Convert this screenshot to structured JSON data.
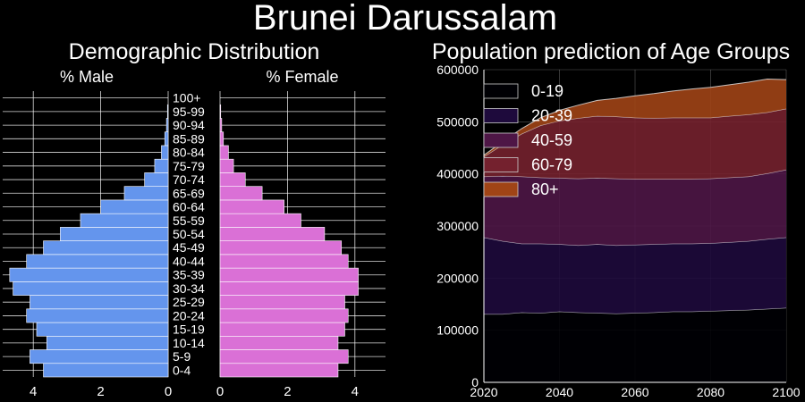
{
  "figure": {
    "title": "Brunei Darussalam"
  },
  "chart_data": [
    {
      "type": "bar",
      "orientation": "horizontal",
      "title": "Demographic Distribution",
      "subtitle_left": "% Male",
      "subtitle_right": "% Female",
      "categories": [
        "0-4",
        "5-9",
        "10-14",
        "15-19",
        "20-24",
        "25-29",
        "30-34",
        "35-39",
        "40-44",
        "45-49",
        "50-54",
        "55-59",
        "60-64",
        "65-69",
        "70-74",
        "75-79",
        "80-84",
        "85-89",
        "90-94",
        "95-99",
        "100+"
      ],
      "series": [
        {
          "name": "% Male",
          "color": "#6495ed",
          "values": [
            3.7,
            4.1,
            3.6,
            3.9,
            4.2,
            4.1,
            4.6,
            4.7,
            4.2,
            3.7,
            3.2,
            2.6,
            2.0,
            1.3,
            0.7,
            0.4,
            0.2,
            0.1,
            0.05,
            0.02,
            0.0
          ]
        },
        {
          "name": "% Female",
          "color": "#da70d6",
          "values": [
            3.5,
            3.8,
            3.5,
            3.7,
            3.8,
            3.7,
            4.1,
            4.1,
            3.8,
            3.6,
            3.1,
            2.4,
            1.9,
            1.25,
            0.75,
            0.4,
            0.25,
            0.1,
            0.05,
            0.02,
            0.0
          ]
        }
      ],
      "xlim": [
        0,
        5
      ],
      "xticks": [
        0,
        2,
        4
      ]
    },
    {
      "type": "area",
      "stacked": true,
      "title": "Population prediction of Age Groups",
      "x": [
        2020,
        2025,
        2030,
        2035,
        2040,
        2045,
        2050,
        2055,
        2060,
        2065,
        2070,
        2075,
        2080,
        2085,
        2090,
        2095,
        2100
      ],
      "series": [
        {
          "name": "0-19",
          "color": "#000004",
          "values": [
            131000,
            131000,
            134000,
            133000,
            136000,
            134000,
            133000,
            132000,
            133000,
            134000,
            136000,
            136000,
            137000,
            138000,
            139000,
            141000,
            143000
          ]
        },
        {
          "name": "20-39",
          "color": "#1e0a3c",
          "values": [
            147000,
            140000,
            132000,
            133000,
            129000,
            129000,
            132000,
            131000,
            131000,
            131000,
            130000,
            130000,
            130000,
            131000,
            132000,
            134000,
            135000
          ]
        },
        {
          "name": "40-59",
          "color": "#4e1646",
          "values": [
            117000,
            125000,
            129000,
            127000,
            127000,
            128000,
            127000,
            128000,
            126000,
            125000,
            124000,
            124000,
            124000,
            124000,
            124000,
            126000,
            130000
          ]
        },
        {
          "name": "60-79",
          "color": "#74212e",
          "values": [
            38000,
            60000,
            82000,
            100000,
            110000,
            116000,
            119000,
            119000,
            118000,
            117000,
            118000,
            118000,
            117000,
            118000,
            119000,
            117000,
            117000
          ]
        },
        {
          "name": "80+",
          "color": "#a04416",
          "values": [
            3000,
            6000,
            10000,
            15000,
            20000,
            25000,
            30000,
            35000,
            42000,
            47000,
            51000,
            55000,
            58000,
            60000,
            62000,
            64000,
            56000
          ]
        }
      ],
      "xlim": [
        2020,
        2100
      ],
      "ylim": [
        0,
        600000
      ],
      "xticks": [
        2020,
        2040,
        2060,
        2080,
        2100
      ],
      "yticks": [
        0,
        100000,
        200000,
        300000,
        400000,
        500000,
        600000
      ],
      "grid": true,
      "legend_position": "top-left"
    }
  ]
}
